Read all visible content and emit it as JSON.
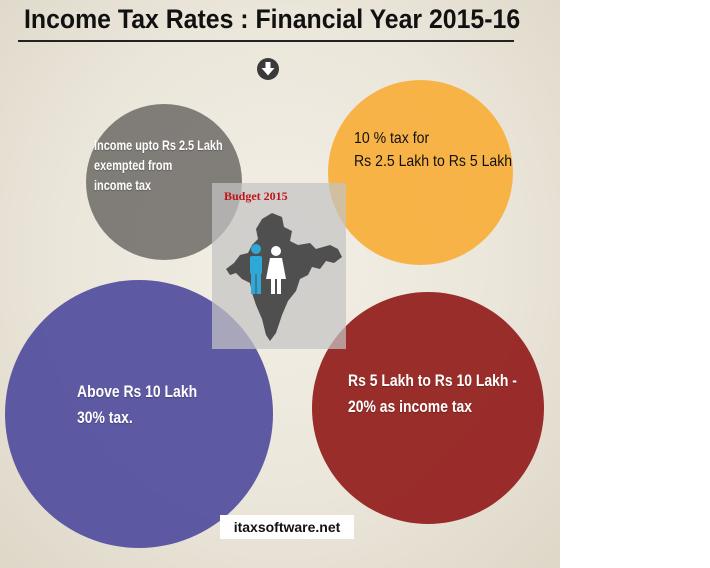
{
  "title": "Income Tax Rates : Financial Year 2015-16",
  "icons": {
    "down": "arrow-down-circle-icon"
  },
  "slabs": {
    "grey": {
      "lines": [
        "Income upto Rs 2.5 Lakh",
        "exempted from",
        "income tax"
      ],
      "color": "#7a7772"
    },
    "orange": {
      "lines": [
        "10 % tax for",
        "Rs 2.5 Lakh to Rs 5 Lakh"
      ],
      "color": "#f8b03e"
    },
    "purple": {
      "lines": [
        "Above Rs 10 Lakh",
        "30% tax."
      ],
      "color": "#5854a0"
    },
    "red": {
      "lines": [
        "Rs 5 Lakh to Rs 10 Lakh -",
        "20% as income tax"
      ],
      "color": "#962624"
    }
  },
  "budget": {
    "label": "Budget 2015"
  },
  "footer": {
    "site": "itaxsoftware.net"
  }
}
